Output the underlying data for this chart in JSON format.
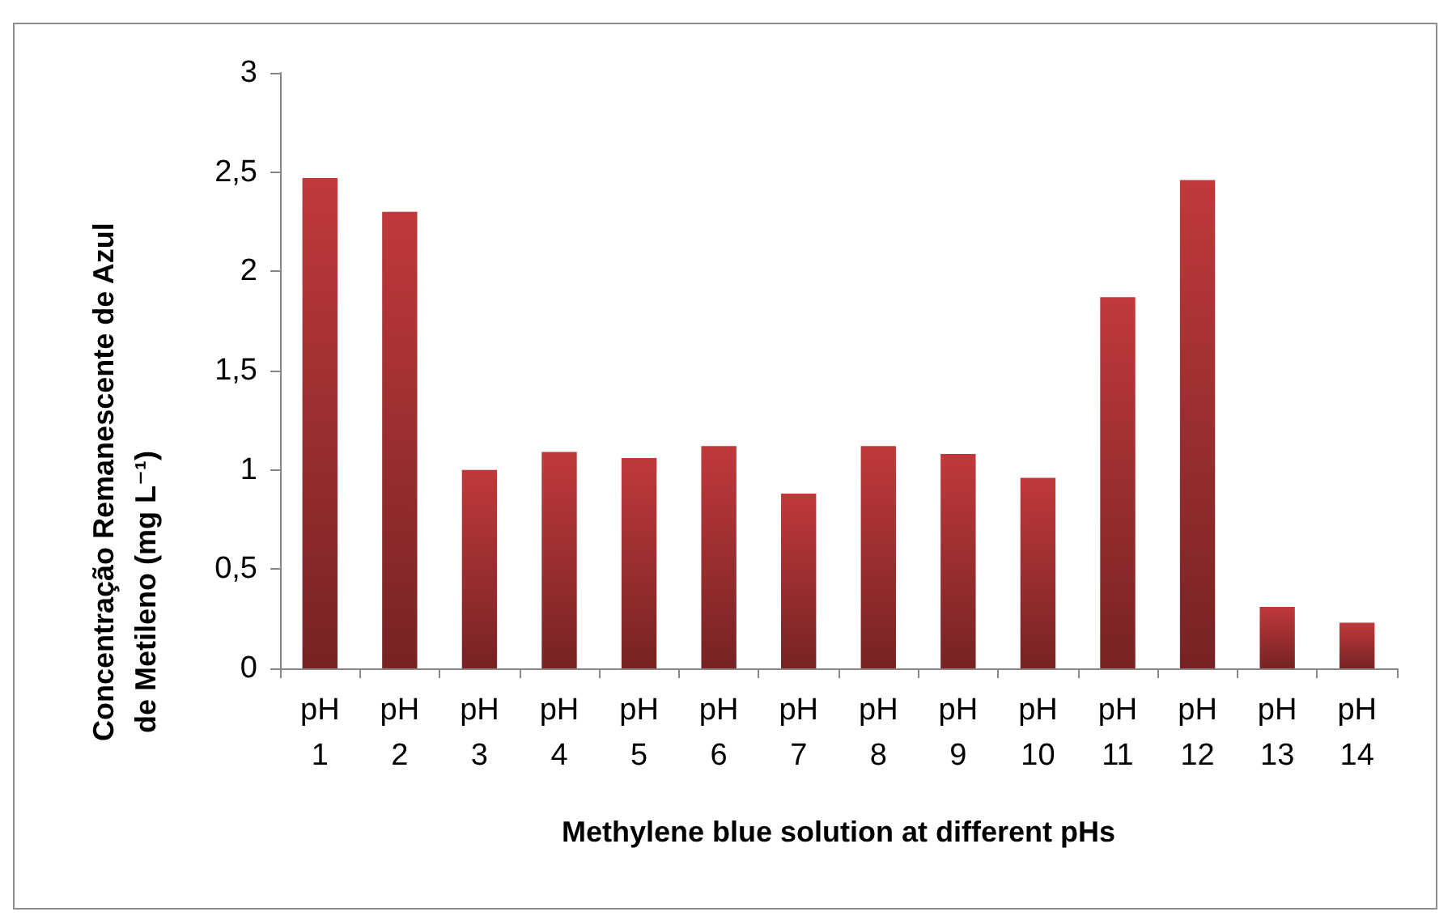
{
  "chart_data": {
    "type": "bar",
    "xlabel": "Methylene blue solution at different pHs",
    "ylabel": "Concentração Remanescente de Azul de Metileno (mg L⁻¹)",
    "categories": [
      "pH 1",
      "pH 2",
      "pH 3",
      "pH 4",
      "pH 5",
      "pH 6",
      "pH 7",
      "pH 8",
      "pH 9",
      "pH 10",
      "pH 11",
      "pH 12",
      "pH 13",
      "pH 14"
    ],
    "values": [
      2.47,
      2.3,
      1.0,
      1.09,
      1.06,
      1.12,
      0.88,
      1.12,
      1.08,
      0.96,
      1.87,
      2.46,
      0.31,
      0.23
    ],
    "color": "#c0393b",
    "ylim": [
      0,
      3
    ],
    "yticks": [
      0,
      {
        "value": 0.5,
        "label": "0,5"
      },
      1,
      {
        "value": 1.5,
        "label": "1,5"
      },
      2,
      {
        "value": 2.5,
        "label": "2,5"
      },
      3
    ],
    "grid": false
  }
}
